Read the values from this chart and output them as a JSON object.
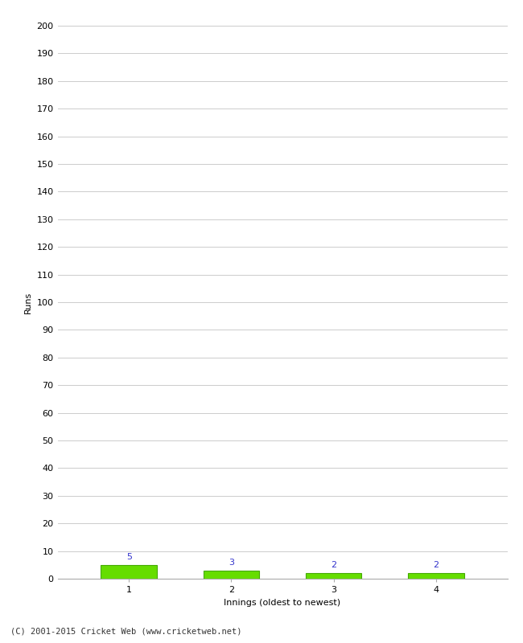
{
  "xlabel": "Innings (oldest to newest)",
  "ylabel": "Runs",
  "categories": [
    1,
    2,
    3,
    4
  ],
  "values": [
    5,
    3,
    2,
    2
  ],
  "bar_color": "#66dd00",
  "bar_edge_color": "#44aa00",
  "value_labels": [
    5,
    3,
    2,
    2
  ],
  "value_label_color": "#3333cc",
  "ylim": [
    0,
    200
  ],
  "yticks": [
    0,
    10,
    20,
    30,
    40,
    50,
    60,
    70,
    80,
    90,
    100,
    110,
    120,
    130,
    140,
    150,
    160,
    170,
    180,
    190,
    200
  ],
  "background_color": "#ffffff",
  "grid_color": "#cccccc",
  "footer_text": "(C) 2001-2015 Cricket Web (www.cricketweb.net)",
  "bar_width": 0.55
}
